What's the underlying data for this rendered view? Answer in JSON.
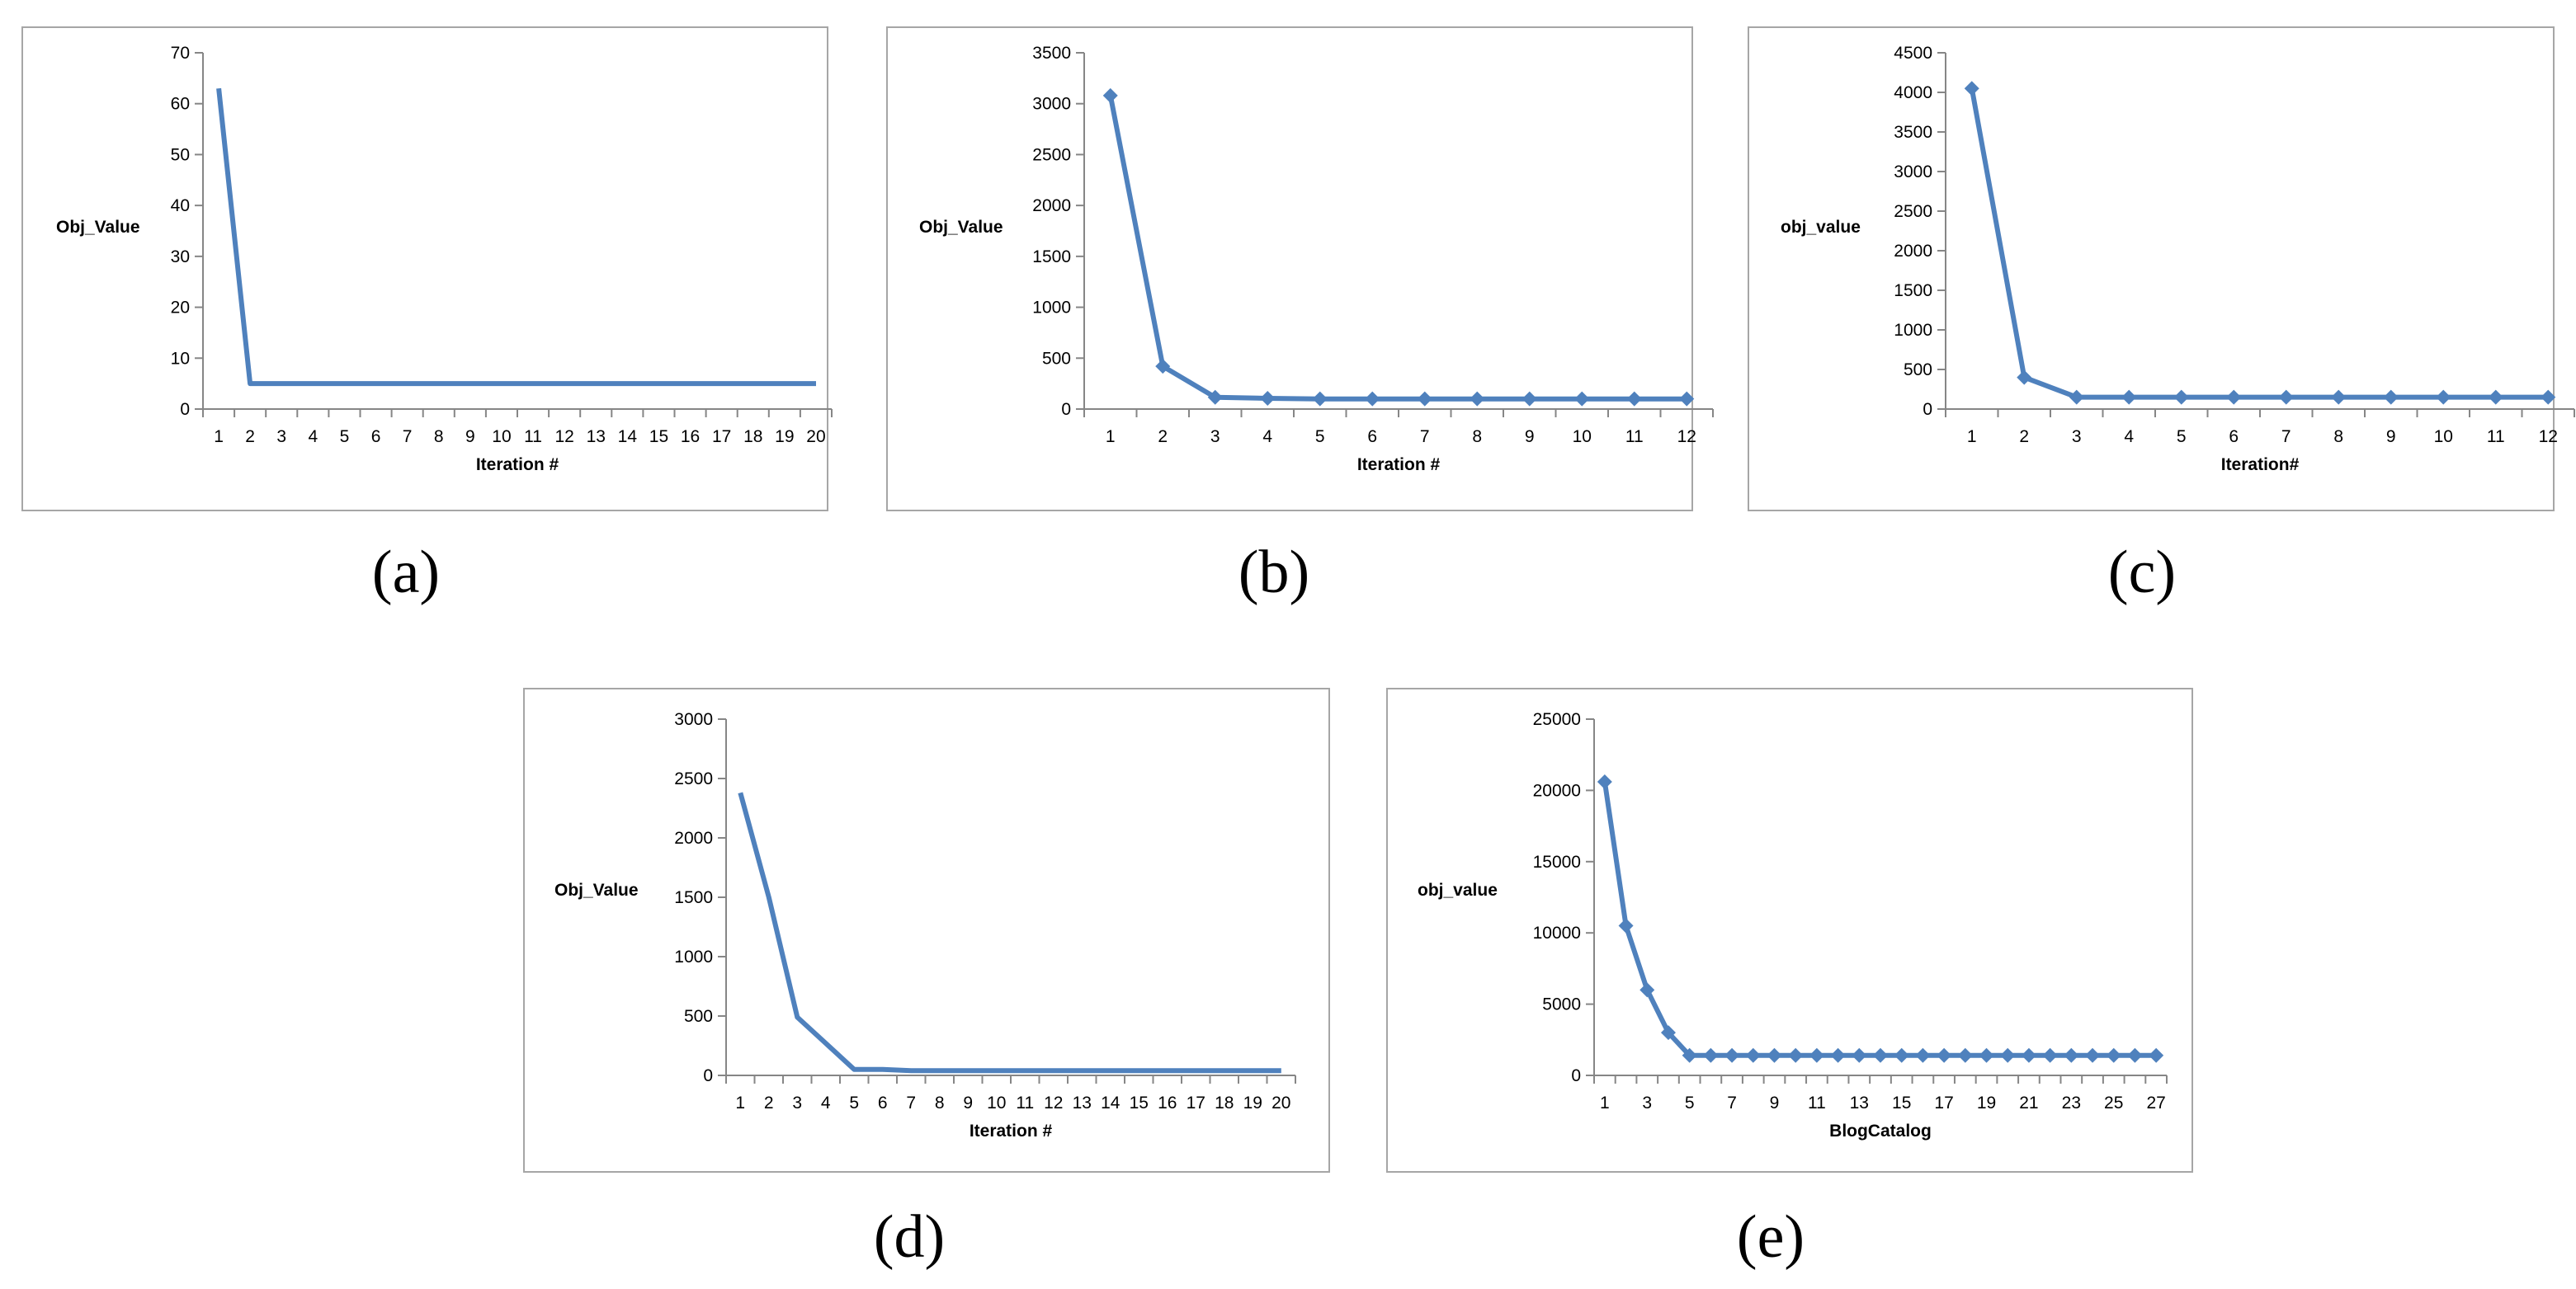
{
  "colors": {
    "series": "#4f81bd",
    "axis": "#868686",
    "frame": "#a6a6a6"
  },
  "chart_data": [
    {
      "id": "a",
      "caption": "(a)",
      "type": "line",
      "markers": false,
      "ylabel": "Obj_Value",
      "xlabel": "Iteration #",
      "ylim": [
        0,
        70
      ],
      "yticks": [
        0,
        10,
        20,
        30,
        40,
        50,
        60,
        70
      ],
      "categories": [
        "1",
        "2",
        "3",
        "4",
        "5",
        "6",
        "7",
        "8",
        "9",
        "10",
        "11",
        "12",
        "13",
        "14",
        "15",
        "16",
        "17",
        "18",
        "19",
        "20"
      ],
      "values": [
        63,
        5,
        5,
        5,
        5,
        5,
        5,
        5,
        5,
        5,
        5,
        5,
        5,
        5,
        5,
        5,
        5,
        5,
        5,
        5
      ]
    },
    {
      "id": "b",
      "caption": "(b)",
      "type": "line",
      "markers": true,
      "ylabel": "Obj_Value",
      "xlabel": "Iteration #",
      "ylim": [
        0,
        3500
      ],
      "yticks": [
        0,
        500,
        1000,
        1500,
        2000,
        2500,
        3000,
        3500
      ],
      "categories": [
        "1",
        "2",
        "3",
        "4",
        "5",
        "6",
        "7",
        "8",
        "9",
        "10",
        "11",
        "12"
      ],
      "values": [
        3080,
        420,
        115,
        105,
        100,
        100,
        100,
        100,
        100,
        100,
        100,
        100
      ]
    },
    {
      "id": "c",
      "caption": "(c)",
      "type": "line",
      "markers": true,
      "ylabel": "obj_value",
      "xlabel": "Iteration#",
      "ylim": [
        0,
        4500
      ],
      "yticks": [
        0,
        500,
        1000,
        1500,
        2000,
        2500,
        3000,
        3500,
        4000,
        4500
      ],
      "categories": [
        "1",
        "2",
        "3",
        "4",
        "5",
        "6",
        "7",
        "8",
        "9",
        "10",
        "11",
        "12"
      ],
      "values": [
        4050,
        400,
        150,
        150,
        150,
        150,
        150,
        150,
        150,
        150,
        150,
        150
      ]
    },
    {
      "id": "d",
      "caption": "(d)",
      "type": "line",
      "markers": false,
      "ylabel": "Obj_Value",
      "xlabel": "Iteration #",
      "ylim": [
        0,
        3000
      ],
      "yticks": [
        0,
        500,
        1000,
        1500,
        2000,
        2500,
        3000
      ],
      "categories": [
        "1",
        "2",
        "3",
        "4",
        "5",
        "6",
        "7",
        "8",
        "9",
        "10",
        "11",
        "12",
        "13",
        "14",
        "15",
        "16",
        "17",
        "18",
        "19",
        "20"
      ],
      "values": [
        2380,
        1500,
        490,
        270,
        50,
        50,
        40,
        40,
        40,
        40,
        40,
        40,
        40,
        40,
        40,
        40,
        40,
        40,
        40,
        40
      ]
    },
    {
      "id": "e",
      "caption": "(e)",
      "type": "line",
      "markers": true,
      "ylabel": "obj_value",
      "xlabel": "BlogCatalog",
      "ylim": [
        0,
        25000
      ],
      "yticks": [
        0,
        5000,
        10000,
        15000,
        20000,
        25000
      ],
      "categories": [
        "1",
        "2",
        "3",
        "4",
        "5",
        "6",
        "7",
        "8",
        "9",
        "10",
        "11",
        "12",
        "13",
        "14",
        "15",
        "16",
        "17",
        "18",
        "19",
        "20",
        "21",
        "22",
        "23",
        "24",
        "25",
        "26",
        "27"
      ],
      "tick_labels": [
        "1",
        "3",
        "5",
        "7",
        "9",
        "11",
        "13",
        "15",
        "17",
        "19",
        "21",
        "23",
        "25",
        "27"
      ],
      "values": [
        20600,
        10500,
        6000,
        3000,
        1400,
        1400,
        1400,
        1400,
        1400,
        1400,
        1400,
        1400,
        1400,
        1400,
        1400,
        1400,
        1400,
        1400,
        1400,
        1400,
        1400,
        1400,
        1400,
        1400,
        1400,
        1400,
        1400
      ]
    }
  ]
}
